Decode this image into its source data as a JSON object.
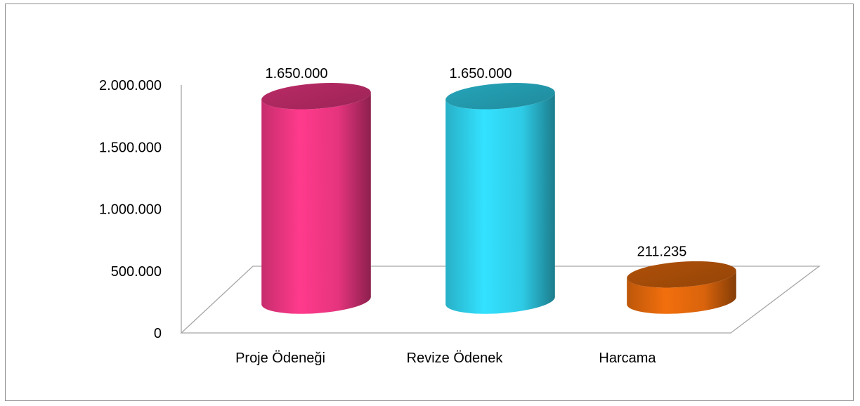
{
  "chart_data": {
    "type": "bar",
    "style": "3d-cylinder",
    "categories": [
      "Proje Ödeneği",
      "Revize Ödenek",
      "Harcama"
    ],
    "values": [
      1650000,
      1650000,
      211235
    ],
    "data_labels": [
      "1.650.000",
      "1.650.000",
      "211.235"
    ],
    "colors": [
      "#ff3a8c",
      "#33e2ff",
      "#f26f0d"
    ],
    "ylim": [
      0,
      2000000
    ],
    "yticks": [
      0,
      500000,
      1000000,
      1500000,
      2000000
    ],
    "ytick_labels": [
      "0",
      "500.000",
      "1.000.000",
      "1.500.000",
      "2.000.000"
    ],
    "grid": false,
    "legend": "none",
    "title": "",
    "xlabel": "",
    "ylabel": ""
  }
}
